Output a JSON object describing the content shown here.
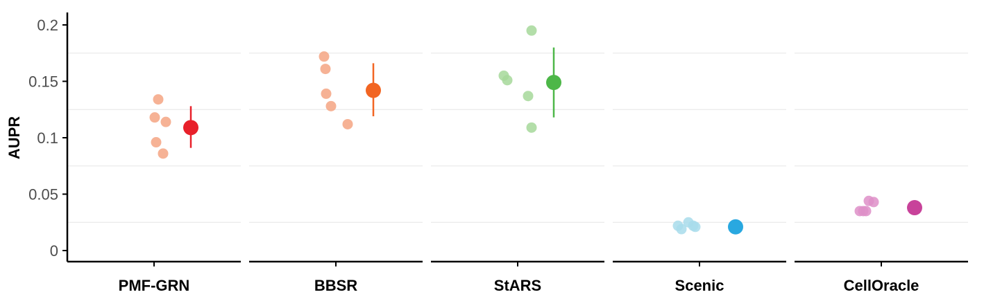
{
  "chart_data": {
    "type": "scatter",
    "ylabel": "AUPR",
    "ylim": [
      0,
      0.2
    ],
    "yticks": [
      {
        "value": 0,
        "label": "0"
      },
      {
        "value": 0.05,
        "label": "0.05"
      },
      {
        "value": 0.1,
        "label": "0.1"
      },
      {
        "value": 0.15,
        "label": "0.15"
      },
      {
        "value": 0.2,
        "label": "0.2"
      }
    ],
    "grid": true,
    "legend": "none",
    "categories": [
      "PMF-GRN",
      "BBSR",
      "StARS",
      "Scenic",
      "CellOracle"
    ],
    "series": [
      {
        "category": "PMF-GRN",
        "point_color": "#F4A582",
        "summary_color": "#E8202A",
        "points": [
          0.134,
          0.118,
          0.114,
          0.096,
          0.086
        ],
        "mean": 0.109,
        "error": [
          0.091,
          0.128
        ]
      },
      {
        "category": "BBSR",
        "point_color": "#F4A582",
        "summary_color": "#F26522",
        "points": [
          0.172,
          0.161,
          0.139,
          0.128,
          0.112
        ],
        "mean": 0.142,
        "error": [
          0.119,
          0.166
        ]
      },
      {
        "category": "StARS",
        "point_color": "#A6D89A",
        "summary_color": "#4DB748",
        "points": [
          0.195,
          0.155,
          0.151,
          0.137,
          0.109
        ],
        "mean": 0.149,
        "error": [
          0.118,
          0.18
        ]
      },
      {
        "category": "Scenic",
        "point_color": "#A8DCEB",
        "summary_color": "#29A8E0",
        "points": [
          0.025,
          0.022,
          0.022,
          0.021,
          0.019
        ],
        "mean": 0.021,
        "error": [
          0.02,
          0.023
        ]
      },
      {
        "category": "CellOracle",
        "point_color": "#DE8FC8",
        "summary_color": "#C8429A",
        "points": [
          0.044,
          0.043,
          0.035,
          0.035,
          0.035
        ],
        "mean": 0.038,
        "error": [
          0.036,
          0.04
        ]
      }
    ]
  }
}
